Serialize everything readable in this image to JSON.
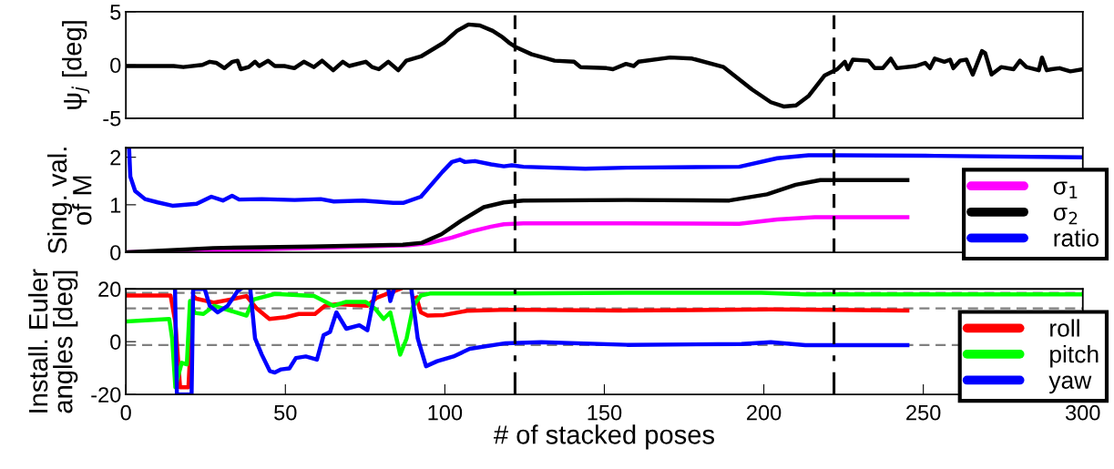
{
  "chart_data": [
    {
      "type": "line",
      "ylabel": "ψ$_{j}$ [deg]",
      "xlim": [
        0,
        300
      ],
      "ylim": [
        -5,
        5
      ],
      "yticks": [
        -5,
        0,
        5
      ],
      "tick_labels": "y",
      "grid": false,
      "legend": false,
      "series": [
        {
          "color": "#000000",
          "x": [
            0.8,
            15,
            18,
            24,
            26.3,
            28.3,
            30.9,
            33.4,
            35,
            36,
            38.5,
            40.5,
            41.8,
            44.6,
            46.7,
            49.7,
            52.8,
            55.8,
            58.9,
            61.5,
            65,
            68,
            70,
            75.2,
            77.2,
            79.3,
            82.3,
            85.4,
            87.9,
            92.5,
            99.7,
            103.8,
            107.4,
            111,
            115,
            118.1,
            120.1,
            122.1,
            127.2,
            134.4,
            140.5,
            142.5,
            150.7,
            152.7,
            156.8,
            159.2,
            160.7,
            170.6,
            177.5,
            187.4,
            196.3,
            202.2,
            206.2,
            210.1,
            214.1,
            219,
            223,
            225.4,
            226.4,
            227.9,
            232.8,
            234.8,
            237.3,
            239.8,
            241.7,
            247.7,
            250.6,
            252.1,
            253.6,
            256.6,
            258.4,
            259.4,
            261.5,
            263.5,
            265.5,
            268.4,
            269.4,
            271.4,
            274.4,
            278.3,
            280.3,
            282.3,
            286.2,
            287.2,
            288.7,
            290.2,
            292.7,
            296.1,
            300
          ],
          "values": [
            -0.1,
            -0.1,
            -0.2,
            0,
            0.3,
            0.2,
            -0.3,
            0.3,
            0.4,
            -0.4,
            -0.2,
            0.3,
            -0.1,
            0.4,
            -0.1,
            -0.1,
            -0.3,
            0.3,
            -0.2,
            0.4,
            -0.5,
            0.3,
            -0.1,
            0.3,
            -0.2,
            -0.4,
            0.3,
            -0.5,
            0.4,
            0.8,
            2.1,
            3.2,
            3.8,
            3.7,
            3.2,
            2.6,
            2.1,
            1.7,
            1.0,
            0.4,
            0.3,
            -0.2,
            -0.3,
            -0.4,
            0.1,
            -0.1,
            0.3,
            0.7,
            0.6,
            -0.2,
            -2.3,
            -3.5,
            -3.9,
            -3.8,
            -2.9,
            -1.0,
            -0.4,
            0.3,
            -0.4,
            0.5,
            0.4,
            -0.3,
            -0.3,
            0.6,
            -0.3,
            -0.1,
            0.2,
            -0.3,
            0.6,
            0.3,
            0.5,
            -0.3,
            0.4,
            0.5,
            -0.9,
            1.3,
            1.1,
            -0.9,
            -0.2,
            -0.4,
            0.4,
            -0.2,
            -0.5,
            0.7,
            -0.5,
            -0.4,
            -0.3,
            -0.6,
            -0.4
          ]
        }
      ],
      "ref_lines": [
        {
          "axis": "x",
          "value": 122,
          "color": "#000000",
          "line_style": "dashed"
        },
        {
          "axis": "x",
          "value": 222,
          "color": "#000000",
          "line_style": "dashed"
        }
      ]
    },
    {
      "type": "line",
      "ylabel": "Sing. val.\nof M",
      "xlim": [
        0,
        300
      ],
      "ylim": [
        0,
        2.2
      ],
      "yticks": [
        0,
        1,
        2
      ],
      "tick_labels": "y",
      "grid": false,
      "legend": "bottom right",
      "series": [
        {
          "name": "σ$_{1}$",
          "color": "#ff00ff",
          "x": [
            0.7,
            58,
            88.8,
            95,
            102.2,
            108.3,
            114.5,
            118.5,
            124.6,
            157,
            192.3,
            204.2,
            216,
            245
          ],
          "values": [
            0,
            0.09,
            0.15,
            0.19,
            0.31,
            0.44,
            0.54,
            0.59,
            0.61,
            0.61,
            0.6,
            0.69,
            0.74,
            0.74
          ]
        },
        {
          "name": "σ$_{2}$",
          "color": "#000000",
          "x": [
            0.7,
            27.4,
            58,
            86.8,
            92.8,
            98.9,
            105,
            112.2,
            118.5,
            124.6,
            157,
            189.2,
            201,
            210,
            217.7,
            245
          ],
          "values": [
            0,
            0.09,
            0.12,
            0.16,
            0.2,
            0.38,
            0.66,
            0.95,
            1.05,
            1.09,
            1.1,
            1.09,
            1.22,
            1.42,
            1.52,
            1.52
          ]
        },
        {
          "name": "ratio",
          "color": "#0000ff",
          "x": [
            1,
            1.4,
            2.9,
            6,
            10,
            14.6,
            22.2,
            26.8,
            30.4,
            33.3,
            35.5,
            42.6,
            52.9,
            61.1,
            65.2,
            74.2,
            83.8,
            86.9,
            92.5,
            99.2,
            102.2,
            104.7,
            106.3,
            109.4,
            114.5,
            118.5,
            121,
            124.6,
            144,
            157,
            192.3,
            204.2,
            214,
            222,
            253.6,
            300
          ],
          "values": [
            2.2,
            1.59,
            1.29,
            1.12,
            1.05,
            0.98,
            1.02,
            1.17,
            1.09,
            1.19,
            1.11,
            1.12,
            1.1,
            1.12,
            1.07,
            1.09,
            1.04,
            1.04,
            1.17,
            1.69,
            1.9,
            1.95,
            1.9,
            1.92,
            1.85,
            1.81,
            1.83,
            1.8,
            1.76,
            1.78,
            1.8,
            1.98,
            2.04,
            2.04,
            2.03,
            2.0
          ]
        }
      ],
      "ref_lines": [
        {
          "axis": "x",
          "value": 122,
          "color": "#000000",
          "line_style": "dashed"
        },
        {
          "axis": "x",
          "value": 222,
          "color": "#000000",
          "line_style": "dashed"
        }
      ]
    },
    {
      "type": "line",
      "ylabel": "Install. Euler\nangles [deg]",
      "xlabel": "# of stacked poses",
      "xlim": [
        0,
        300
      ],
      "xticks": [
        0,
        50,
        100,
        150,
        200,
        250,
        300
      ],
      "ylim": [
        -20,
        20
      ],
      "yticks": [
        -20,
        0,
        20
      ],
      "grid": false,
      "legend": "bottom right",
      "series": [
        {
          "name": "roll",
          "color": "#ff0000",
          "x": [
            0.2,
            14,
            15.5,
            17,
            19.6,
            21.1,
            22.1,
            27.7,
            32.8,
            37.8,
            41,
            45,
            50.2,
            54.2,
            59.3,
            62.4,
            66.5,
            75.7,
            78.7,
            84,
            86,
            88,
            91.1,
            92.5,
            94.6,
            99.7,
            106.9,
            120,
            154.7,
            202.2,
            245
          ],
          "values": [
            17.5,
            17.5,
            7.4,
            -17.3,
            -17.3,
            17.3,
            16.3,
            14.8,
            16,
            17.3,
            12.6,
            8.6,
            9.3,
            10.5,
            10.5,
            13.6,
            14.2,
            13.6,
            16.7,
            19.1,
            20,
            null,
            16.7,
            11.1,
            9.9,
            10.1,
            11.7,
            12.1,
            11.8,
            12.2,
            11.8
          ]
        },
        {
          "name": "pitch",
          "color": "#00ff00",
          "x": [
            0.2,
            13.6,
            14.5,
            15.5,
            17.5,
            19.1,
            20.1,
            21.6,
            24.3,
            27.7,
            37.8,
            40,
            46.7,
            59,
            65,
            69.1,
            75.2,
            78.3,
            80.8,
            82.9,
            86,
            88,
            90.1,
            92.5,
            95.6,
            120,
            157,
            199.2,
            213,
            300
          ],
          "values": [
            7.7,
            8.6,
            1.2,
            -17.3,
            -8,
            -8.6,
            15.4,
            10.9,
            10.5,
            13.6,
            9.9,
            16,
            18.1,
            17.3,
            13.6,
            15.1,
            15.1,
            12.3,
            8.6,
            11.1,
            -4.9,
            1.2,
            13.6,
            17.5,
            18.3,
            18.3,
            18.5,
            18.5,
            17.9,
            17.9
          ]
        },
        {
          "name": "yaw",
          "color": "#0000ff",
          "x": [
            15.4,
            16,
            20.6,
            21.1,
            24.7,
            26.3,
            28.8,
            31.9,
            35,
            36,
            37.5,
            39,
            40.5,
            42.6,
            45.1,
            46.7,
            48.7,
            51.3,
            53.3,
            56.4,
            59.9,
            62,
            64,
            66,
            69.1,
            73.2,
            75.7,
            78.3,
            80,
            82.4,
            82.9,
            84,
            86,
            89.5,
            91.5,
            94.1,
            97.6,
            102.7,
            107.8,
            119,
            130.2,
            157.1,
            193,
            202.2,
            213,
            245
          ],
          "values": [
            20,
            -20,
            -20,
            20,
            20,
            13.6,
            11.1,
            13.6,
            19.1,
            20,
            null,
            20,
            1.2,
            -4.9,
            -11.1,
            -11.7,
            -10.5,
            -10.1,
            -6.2,
            -5.6,
            -6.8,
            2.5,
            3.7,
            11.1,
            4.9,
            6.2,
            4.3,
            20,
            null,
            19.1,
            15.4,
            19.8,
            null,
            20,
            1.2,
            -9.3,
            -7.4,
            -5.6,
            -2.7,
            -0.6,
            -0.2,
            -1.2,
            -0.9,
            -0.2,
            -1.3,
            -1.3
          ]
        }
      ],
      "ref_lines": [
        {
          "axis": "y",
          "value": 18.5,
          "color": "#808080",
          "line_style": "dashed"
        },
        {
          "axis": "y",
          "value": 12.6,
          "color": "#808080",
          "line_style": "dashed"
        },
        {
          "axis": "y",
          "value": -1.3,
          "color": "#808080",
          "line_style": "dashed"
        },
        {
          "axis": "x",
          "value": 122,
          "color": "#000000",
          "line_style": "dashdot"
        },
        {
          "axis": "x",
          "value": 222,
          "color": "#000000",
          "line_style": "dashdot"
        }
      ]
    }
  ]
}
